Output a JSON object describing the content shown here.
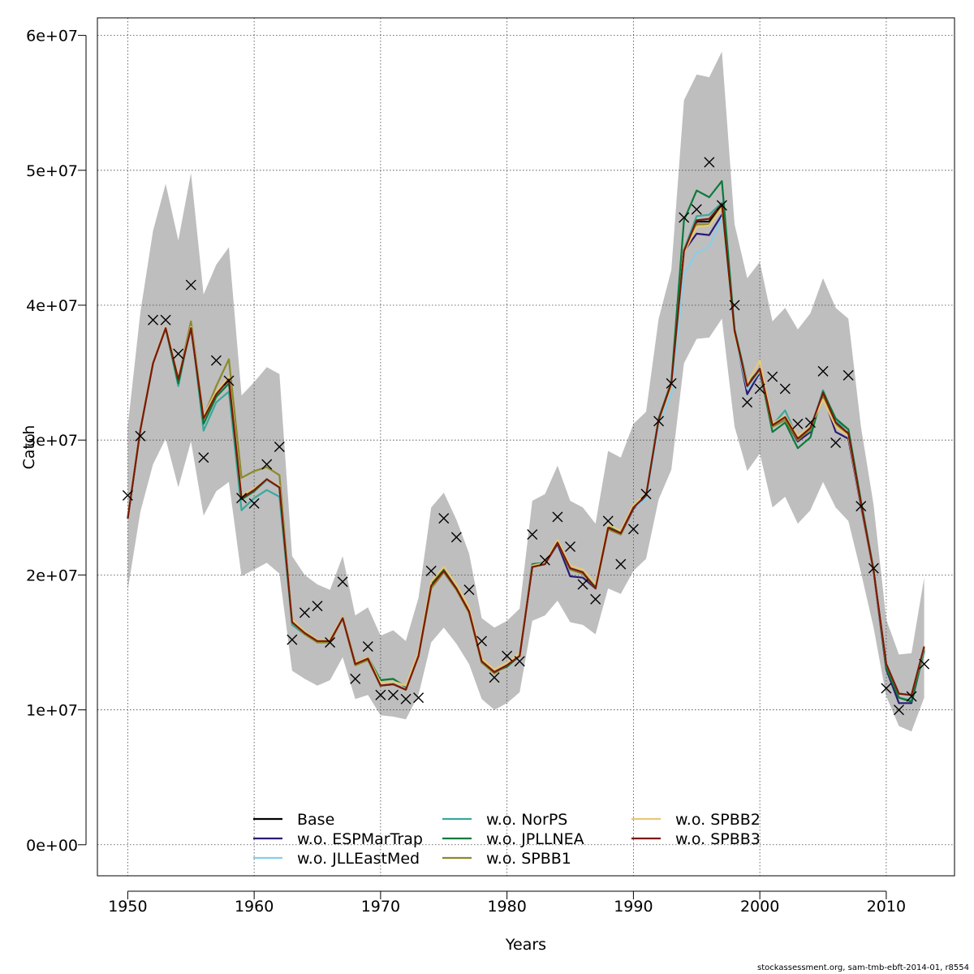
{
  "chart_data": {
    "type": "line",
    "xlabel": "Years",
    "ylabel": "Catch",
    "xlim": [
      1947.6,
      2015.4
    ],
    "ylim": [
      -2300000,
      61300000
    ],
    "x_ticks": [
      1950,
      1960,
      1970,
      1980,
      1990,
      2000,
      2010
    ],
    "y_ticks": [
      0,
      10000000,
      20000000,
      30000000,
      40000000,
      50000000,
      60000000
    ],
    "y_tick_labels": [
      "0e+00",
      "1e+07",
      "2e+07",
      "3e+07",
      "4e+07",
      "5e+07",
      "6e+07"
    ],
    "grid": true,
    "grid_style": "dotted",
    "legend_position": "bottom",
    "years": [
      1950,
      1951,
      1952,
      1953,
      1954,
      1955,
      1956,
      1957,
      1958,
      1959,
      1960,
      1961,
      1962,
      1963,
      1964,
      1965,
      1966,
      1967,
      1968,
      1969,
      1970,
      1971,
      1972,
      1973,
      1974,
      1975,
      1976,
      1977,
      1978,
      1979,
      1980,
      1981,
      1982,
      1983,
      1984,
      1985,
      1986,
      1987,
      1988,
      1989,
      1990,
      1991,
      1992,
      1993,
      1994,
      1995,
      1996,
      1997,
      1998,
      1999,
      2000,
      2001,
      2002,
      2003,
      2004,
      2005,
      2006,
      2007,
      2008,
      2009,
      2010,
      2011,
      2012,
      2013
    ],
    "band": {
      "color": "#bebebe",
      "upper": [
        31000000,
        39500000,
        45500000,
        49000000,
        44800000,
        49800000,
        40800000,
        43000000,
        44300000,
        33300000,
        34300000,
        35400000,
        34900000,
        21400000,
        20000000,
        19300000,
        18900000,
        21400000,
        17000000,
        17600000,
        15500000,
        15900000,
        15100000,
        18300000,
        25000000,
        26100000,
        24100000,
        21600000,
        16800000,
        16100000,
        16600000,
        17500000,
        25500000,
        26000000,
        28100000,
        25500000,
        25000000,
        23800000,
        29200000,
        28700000,
        31200000,
        32100000,
        39000000,
        42600000,
        55200000,
        57100000,
        56900000,
        58800000,
        46000000,
        42000000,
        43200000,
        38800000,
        39800000,
        38200000,
        39400000,
        42000000,
        39800000,
        39000000,
        31000000,
        25200000,
        16700000,
        14100000,
        14200000,
        19800000
      ],
      "lower": [
        18900000,
        24700000,
        28200000,
        30100000,
        26500000,
        29900000,
        24400000,
        26200000,
        26900000,
        19900000,
        20400000,
        20900000,
        20100000,
        12900000,
        12300000,
        11800000,
        12200000,
        13900000,
        10800000,
        11100000,
        9600000,
        9500000,
        9300000,
        11100000,
        15000000,
        16100000,
        14900000,
        13400000,
        10800000,
        10000000,
        10500000,
        11300000,
        16600000,
        17000000,
        18100000,
        16500000,
        16300000,
        15600000,
        19000000,
        18600000,
        20300000,
        21200000,
        25600000,
        27800000,
        35700000,
        37500000,
        37600000,
        39000000,
        31000000,
        27700000,
        29000000,
        25000000,
        25800000,
        23800000,
        24800000,
        26900000,
        25000000,
        24000000,
        20200000,
        16100000,
        11000000,
        8800000,
        8400000,
        10900000
      ]
    },
    "observed": {
      "marker": "x",
      "values": [
        25900000,
        30300000,
        38900000,
        38900000,
        36400000,
        41500000,
        28700000,
        35900000,
        34400000,
        25700000,
        25300000,
        28200000,
        29500000,
        15200000,
        17200000,
        17700000,
        15000000,
        19500000,
        12300000,
        14700000,
        11100000,
        11100000,
        10800000,
        10900000,
        20300000,
        24200000,
        22800000,
        18900000,
        15100000,
        12400000,
        14000000,
        13600000,
        23000000,
        21100000,
        24300000,
        22100000,
        19300000,
        18200000,
        24000000,
        20800000,
        23400000,
        26000000,
        31400000,
        34200000,
        46500000,
        47100000,
        50600000,
        47400000,
        40000000,
        32800000,
        33800000,
        34700000,
        33800000,
        31200000,
        31300000,
        35100000,
        29800000,
        34800000,
        25100000,
        20500000,
        11600000,
        10000000,
        11000000,
        13400000
      ]
    },
    "series": [
      {
        "name": "Base",
        "color": "#000000",
        "values": [
          24200000,
          30800000,
          35700000,
          38300000,
          34500000,
          38300000,
          31600000,
          33400000,
          34500000,
          25700000,
          26300000,
          27000000,
          26500000,
          16500000,
          15700000,
          15100000,
          15100000,
          16800000,
          13400000,
          13800000,
          11800000,
          11900000,
          11500000,
          14000000,
          19200000,
          20300000,
          19000000,
          17300000,
          13600000,
          12800000,
          13300000,
          14000000,
          20600000,
          20800000,
          22400000,
          20500000,
          20200000,
          19000000,
          23500000,
          23100000,
          25000000,
          25900000,
          31500000,
          34200000,
          44100000,
          46200000,
          46200000,
          47500000,
          38000000,
          34000000,
          35200000,
          31000000,
          31600000,
          30000000,
          30900000,
          33400000,
          31300000,
          30500000,
          25300000,
          20300000,
          13400000,
          11200000,
          11100000,
          14600000
        ]
      },
      {
        "name": "w.o. ESPMarTrap",
        "color": "#2a1a74",
        "values": [
          24200000,
          30800000,
          35700000,
          38300000,
          34500000,
          38300000,
          31600000,
          33400000,
          34500000,
          25700000,
          26300000,
          27100000,
          26500000,
          16500000,
          15700000,
          15100000,
          15100000,
          16800000,
          13400000,
          13800000,
          11800000,
          11900000,
          11500000,
          14000000,
          19200000,
          20300000,
          19000000,
          17300000,
          13600000,
          12800000,
          13300000,
          14000000,
          20600000,
          20800000,
          22300000,
          19900000,
          19800000,
          19000000,
          23400000,
          23000000,
          24900000,
          25900000,
          31500000,
          34200000,
          44000000,
          45300000,
          45200000,
          46700000,
          38000000,
          33400000,
          35000000,
          31000000,
          31500000,
          29900000,
          30600000,
          33300000,
          30600000,
          30100000,
          25100000,
          20200000,
          13000000,
          10500000,
          10500000,
          14400000
        ]
      },
      {
        "name": "w.o. JLLEastMed",
        "color": "#87ceeb",
        "values": [
          24200000,
          30800000,
          35700000,
          38300000,
          34500000,
          38300000,
          31600000,
          33400000,
          34500000,
          25700000,
          26300000,
          27000000,
          26500000,
          16500000,
          15700000,
          15100000,
          15100000,
          16800000,
          13400000,
          13800000,
          11800000,
          11900000,
          11500000,
          14000000,
          19200000,
          20300000,
          19000000,
          17300000,
          13600000,
          12800000,
          13300000,
          14000000,
          20600000,
          20800000,
          22400000,
          20500000,
          20200000,
          19000000,
          23500000,
          23100000,
          25000000,
          25600000,
          31100000,
          33400000,
          42300000,
          43900000,
          44300000,
          46500000,
          37700000,
          33800000,
          35100000,
          31000000,
          31600000,
          30000000,
          30900000,
          33400000,
          31300000,
          30500000,
          25300000,
          20300000,
          13400000,
          11200000,
          11100000,
          14600000
        ]
      },
      {
        "name": "w.o. NorPS",
        "color": "#3aa89a",
        "values": [
          24200000,
          30800000,
          35700000,
          38300000,
          34000000,
          38600000,
          30700000,
          32800000,
          33600000,
          24800000,
          25700000,
          26300000,
          25800000,
          16300000,
          15600000,
          15100000,
          15100000,
          16800000,
          13400000,
          13800000,
          11800000,
          11900000,
          11500000,
          14000000,
          19200000,
          20300000,
          19000000,
          17300000,
          13600000,
          12800000,
          13300000,
          14000000,
          20800000,
          20900000,
          22500000,
          20500000,
          20200000,
          19100000,
          23500000,
          23100000,
          25000000,
          25900000,
          31500000,
          34200000,
          44100000,
          46600000,
          46700000,
          47600000,
          38200000,
          34000000,
          35300000,
          31100000,
          32200000,
          30100000,
          30700000,
          33700000,
          31400000,
          30800000,
          25400000,
          20300000,
          13200000,
          10900000,
          10700000,
          14300000
        ]
      },
      {
        "name": "w.o. JPLLNEA",
        "color": "#0b7a3a",
        "values": [
          24200000,
          30800000,
          35700000,
          38300000,
          34200000,
          38500000,
          31200000,
          33200000,
          34200000,
          25600000,
          26200000,
          27100000,
          26500000,
          16600000,
          15700000,
          15100000,
          15100000,
          16900000,
          13500000,
          13900000,
          12200000,
          12300000,
          11700000,
          14100000,
          19300000,
          20400000,
          19000000,
          17300000,
          13500000,
          12800000,
          13200000,
          14000000,
          20800000,
          20900000,
          22400000,
          20400000,
          20100000,
          19100000,
          23600000,
          23100000,
          25200000,
          25900000,
          31600000,
          34300000,
          46300000,
          48500000,
          48000000,
          49200000,
          38200000,
          34200000,
          35200000,
          30600000,
          31300000,
          29400000,
          30200000,
          33600000,
          31600000,
          30800000,
          25500000,
          20400000,
          13100000,
          10900000,
          10600000,
          14500000
        ]
      },
      {
        "name": "w.o. SPBB1",
        "color": "#8b8a2a",
        "values": [
          24200000,
          30800000,
          35700000,
          38300000,
          34500000,
          38800000,
          31700000,
          34000000,
          36000000,
          27200000,
          27700000,
          28000000,
          27400000,
          16500000,
          15600000,
          15000000,
          15000000,
          16800000,
          13300000,
          13700000,
          11800000,
          11900000,
          11500000,
          14000000,
          19000000,
          20200000,
          18900000,
          17200000,
          13500000,
          12700000,
          13300000,
          14000000,
          20600000,
          20800000,
          22400000,
          20400000,
          20100000,
          19000000,
          23400000,
          23000000,
          25000000,
          25900000,
          31500000,
          34200000,
          44100000,
          46000000,
          46000000,
          47300000,
          38000000,
          34000000,
          35200000,
          31000000,
          31500000,
          30000000,
          30800000,
          33300000,
          31200000,
          30400000,
          25300000,
          20300000,
          13400000,
          11200000,
          11100000,
          14600000
        ]
      },
      {
        "name": "w.o. SPBB2",
        "color": "#e8c878",
        "values": [
          24300000,
          30900000,
          35800000,
          38400000,
          34600000,
          38400000,
          31800000,
          33600000,
          34700000,
          25900000,
          26400000,
          27100000,
          26600000,
          16700000,
          15800000,
          15200000,
          15200000,
          16900000,
          13500000,
          13900000,
          12000000,
          12100000,
          11800000,
          14300000,
          19500000,
          20600000,
          19300000,
          17600000,
          13800000,
          13000000,
          13500000,
          14200000,
          20700000,
          20900000,
          22600000,
          20700000,
          20400000,
          19300000,
          23700000,
          23300000,
          25200000,
          26000000,
          31400000,
          34000000,
          43900000,
          45800000,
          45900000,
          47200000,
          37800000,
          34200000,
          35900000,
          31200000,
          31800000,
          30300000,
          31000000,
          33000000,
          31000000,
          30300000,
          25200000,
          20200000,
          13400000,
          11200000,
          11100000,
          14600000
        ]
      },
      {
        "name": "w.o. SPBB3",
        "color": "#7a1a0a",
        "values": [
          24200000,
          30800000,
          35700000,
          38300000,
          34500000,
          38300000,
          31600000,
          33400000,
          34500000,
          25700000,
          26300000,
          27100000,
          26500000,
          16500000,
          15700000,
          15100000,
          15100000,
          16800000,
          13400000,
          13800000,
          11800000,
          11900000,
          11500000,
          14000000,
          19200000,
          20300000,
          19000000,
          17300000,
          13600000,
          12800000,
          13300000,
          14000000,
          20600000,
          20800000,
          22400000,
          20500000,
          20200000,
          19000000,
          23500000,
          23100000,
          25000000,
          25900000,
          31500000,
          34200000,
          44000000,
          46300000,
          46400000,
          47500000,
          38100000,
          34000000,
          35300000,
          31100000,
          31700000,
          30100000,
          30900000,
          33500000,
          31300000,
          30500000,
          25300000,
          20300000,
          13400000,
          11200000,
          11100000,
          14700000
        ]
      }
    ],
    "legend": {
      "entries": [
        "Base",
        "w.o. NorPS",
        "w.o. SPBB2",
        "w.o. ESPMarTrap",
        "w.o. JPLLNEA",
        "w.o. SPBB3",
        "w.o. JLLEastMed",
        "w.o. SPBB1"
      ]
    }
  },
  "footer": "stockassessment.org, sam-tmb-ebft-2014-01, r8554"
}
